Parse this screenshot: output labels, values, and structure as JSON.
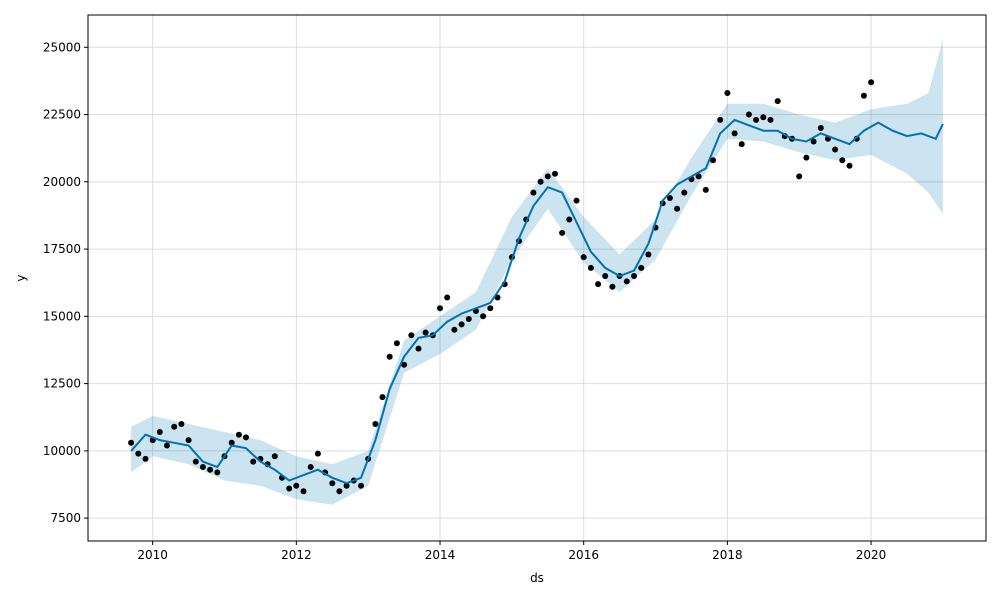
{
  "chart_data": {
    "type": "line",
    "title": "",
    "xlabel": "ds",
    "ylabel": "y",
    "xlim": [
      2009.1,
      2021.6
    ],
    "ylim": [
      6650,
      26200
    ],
    "x_ticks": [
      2010,
      2012,
      2014,
      2016,
      2018,
      2020
    ],
    "x_tick_labels": [
      "2010",
      "2012",
      "2014",
      "2016",
      "2018",
      "2020"
    ],
    "y_ticks": [
      7500,
      10000,
      12500,
      15000,
      17500,
      20000,
      22500,
      25000
    ],
    "y_tick_labels": [
      "7500",
      "10000",
      "12500",
      "15000",
      "17500",
      "20000",
      "22500",
      "25000"
    ],
    "grid": true,
    "colors": {
      "forecast": "#0072B2",
      "band": "#0072B2",
      "observed": "#000000",
      "grid": "#dddddd"
    },
    "series": [
      {
        "type": "observed-points",
        "x": [
          2009.7,
          2009.8,
          2009.9,
          2010.0,
          2010.1,
          2010.2,
          2010.3,
          2010.4,
          2010.5,
          2010.6,
          2010.7,
          2010.8,
          2010.9,
          2011.0,
          2011.1,
          2011.2,
          2011.3,
          2011.4,
          2011.5,
          2011.6,
          2011.7,
          2011.8,
          2011.9,
          2012.0,
          2012.1,
          2012.2,
          2012.3,
          2012.4,
          2012.5,
          2012.6,
          2012.7,
          2012.8,
          2012.9,
          2013.0,
          2013.1,
          2013.2,
          2013.3,
          2013.4,
          2013.5,
          2013.6,
          2013.7,
          2013.8,
          2013.9,
          2014.0,
          2014.1,
          2014.2,
          2014.3,
          2014.4,
          2014.5,
          2014.6,
          2014.7,
          2014.8,
          2014.9,
          2015.0,
          2015.1,
          2015.2,
          2015.3,
          2015.4,
          2015.5,
          2015.6,
          2015.7,
          2015.8,
          2015.9,
          2016.0,
          2016.1,
          2016.2,
          2016.3,
          2016.4,
          2016.5,
          2016.6,
          2016.7,
          2016.8,
          2016.9,
          2017.0,
          2017.1,
          2017.2,
          2017.3,
          2017.4,
          2017.5,
          2017.6,
          2017.7,
          2017.8,
          2017.9,
          2018.0,
          2018.1,
          2018.2,
          2018.3,
          2018.4,
          2018.5,
          2018.6,
          2018.7,
          2018.8,
          2018.9,
          2019.0,
          2019.1,
          2019.2,
          2019.3,
          2019.4,
          2019.5,
          2019.6,
          2019.7,
          2019.8,
          2019.9,
          2020.0
        ],
        "y": [
          10300,
          9900,
          9700,
          10400,
          10700,
          10200,
          10900,
          11000,
          10400,
          9600,
          9400,
          9300,
          9200,
          9800,
          10300,
          10600,
          10500,
          9600,
          9700,
          9500,
          9800,
          9000,
          8600,
          8700,
          8500,
          9400,
          9900,
          9200,
          8800,
          8500,
          8700,
          8900,
          8700,
          9700,
          11000,
          12000,
          13500,
          14000,
          13200,
          14300,
          13800,
          14400,
          14300,
          15300,
          15700,
          14500,
          14700,
          14900,
          15200,
          15000,
          15300,
          15700,
          16200,
          17200,
          17800,
          18600,
          19600,
          20000,
          20200,
          20300,
          18100,
          18600,
          19300,
          17200,
          16800,
          16200,
          16500,
          16100,
          16500,
          16300,
          16500,
          16800,
          17300,
          18300,
          19200,
          19400,
          19000,
          19600,
          20100,
          20200,
          19700,
          20800,
          22300,
          23300,
          21800,
          21400,
          22500,
          22300,
          22400,
          22300,
          23000,
          21700,
          21600,
          20200,
          20900,
          21500,
          22000,
          21600,
          21200,
          20800,
          20600,
          21600,
          23200,
          23700
        ]
      },
      {
        "type": "forecast-line",
        "x": [
          2009.7,
          2009.9,
          2010.1,
          2010.3,
          2010.5,
          2010.7,
          2010.9,
          2011.1,
          2011.3,
          2011.5,
          2011.7,
          2011.9,
          2012.1,
          2012.3,
          2012.5,
          2012.7,
          2012.9,
          2013.1,
          2013.3,
          2013.5,
          2013.7,
          2013.9,
          2014.1,
          2014.3,
          2014.5,
          2014.7,
          2014.9,
          2015.1,
          2015.3,
          2015.5,
          2015.7,
          2015.9,
          2016.1,
          2016.3,
          2016.5,
          2016.7,
          2016.9,
          2017.1,
          2017.3,
          2017.5,
          2017.7,
          2017.9,
          2018.1,
          2018.3,
          2018.5,
          2018.7,
          2018.9,
          2019.1,
          2019.3,
          2019.5,
          2019.7,
          2019.9,
          2020.1,
          2020.3,
          2020.5,
          2020.7,
          2020.9,
          2021.0
        ],
        "y": [
          10000,
          10600,
          10400,
          10300,
          10200,
          9600,
          9400,
          10200,
          10100,
          9600,
          9300,
          8900,
          9100,
          9300,
          9000,
          8800,
          9000,
          10400,
          12300,
          13500,
          14200,
          14300,
          14800,
          15100,
          15300,
          15500,
          16300,
          17900,
          19100,
          19800,
          19600,
          18500,
          17400,
          16800,
          16500,
          16700,
          17700,
          19300,
          19900,
          20200,
          20500,
          21800,
          22300,
          22100,
          21900,
          21900,
          21600,
          21500,
          21800,
          21600,
          21400,
          21900,
          22200,
          21900,
          21700,
          21800,
          21600,
          22150
        ]
      },
      {
        "type": "uncertainty-band",
        "x": [
          2009.7,
          2010.0,
          2010.5,
          2011.0,
          2011.5,
          2012.0,
          2012.5,
          2013.0,
          2013.5,
          2014.0,
          2014.5,
          2015.0,
          2015.5,
          2016.0,
          2016.5,
          2017.0,
          2017.5,
          2018.0,
          2018.5,
          2019.0,
          2019.5,
          2020.0,
          2020.5,
          2020.8,
          2021.0
        ],
        "upper": [
          10900,
          11300,
          11000,
          10700,
          10400,
          9800,
          9500,
          10000,
          14100,
          15000,
          15900,
          18700,
          20500,
          18700,
          17300,
          18600,
          20900,
          22900,
          22900,
          22500,
          22200,
          22700,
          22900,
          23300,
          25300
        ],
        "lower": [
          9200,
          9800,
          9500,
          8900,
          8700,
          8200,
          8000,
          8700,
          12900,
          13600,
          14500,
          17100,
          19000,
          17000,
          15900,
          17100,
          19500,
          21600,
          21500,
          21100,
          20800,
          21000,
          20300,
          19600,
          18800
        ]
      }
    ]
  }
}
